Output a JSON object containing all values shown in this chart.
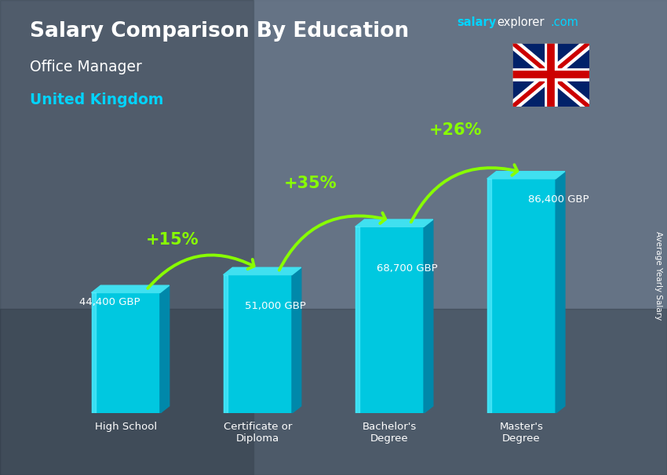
{
  "title_main": "Salary Comparison By Education",
  "title_sub1": "Office Manager",
  "title_sub2": "United Kingdom",
  "ylabel": "Average Yearly Salary",
  "categories": [
    "High School",
    "Certificate or\nDiploma",
    "Bachelor's\nDegree",
    "Master's\nDegree"
  ],
  "values": [
    44400,
    51000,
    68700,
    86400
  ],
  "labels": [
    "44,400 GBP",
    "51,000 GBP",
    "68,700 GBP",
    "86,400 GBP"
  ],
  "pct_labels": [
    "+15%",
    "+35%",
    "+26%"
  ],
  "bar_color_face": "#00c8e0",
  "bar_color_dark": "#0088aa",
  "bar_color_side": "#007799",
  "background_color": "#6b7a8d",
  "text_color_white": "#ffffff",
  "text_color_cyan": "#00d4ff",
  "text_color_green": "#88ff00",
  "brand_salary_color": "#00d4ff",
  "brand_explorer_color": "#ffffff",
  "brand_com_color": "#00d4ff",
  "ylim": [
    0,
    105000
  ],
  "bar_width": 0.52,
  "xlim_left": -0.65,
  "xlim_right": 3.75
}
